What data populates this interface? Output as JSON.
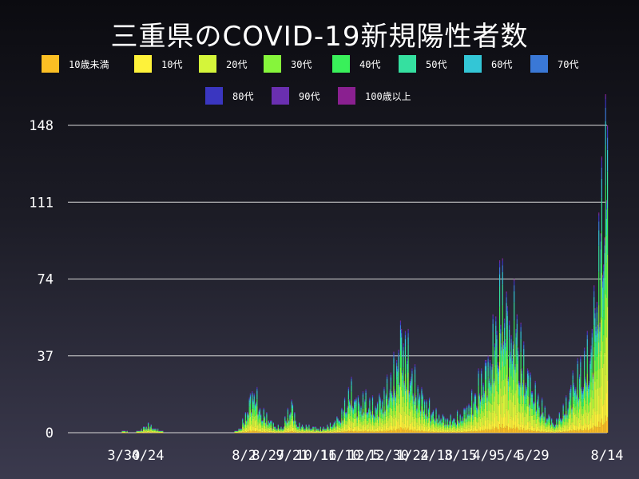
{
  "title": "三重県のCOVID-19新規陽性者数",
  "legend": [
    {
      "label": "10歳未満",
      "color": "#fbbf24"
    },
    {
      "label": "10代",
      "color": "#fef23a"
    },
    {
      "label": "20代",
      "color": "#d4f53a"
    },
    {
      "label": "30代",
      "color": "#86f53b"
    },
    {
      "label": "40代",
      "color": "#39f05a"
    },
    {
      "label": "50代",
      "color": "#35e0a0"
    },
    {
      "label": "60代",
      "color": "#33c6d6"
    },
    {
      "label": "70代",
      "color": "#3a78d6"
    },
    {
      "label": "80代",
      "color": "#3a36c0"
    },
    {
      "label": "90代",
      "color": "#6a2fb0"
    },
    {
      "label": "100歳以上",
      "color": "#8a2090"
    }
  ],
  "chart_data": {
    "type": "bar",
    "stacked": true,
    "title": "三重県のCOVID-19新規陽性者数",
    "xlabel": "",
    "ylabel": "",
    "ylim": [
      0,
      148
    ],
    "y_ticks": [
      0,
      37,
      74,
      111,
      148
    ],
    "grid": true,
    "legend_position": "top",
    "x_range": [
      "2020-02-01",
      "2021-08-14"
    ],
    "x_ticks": [
      {
        "date": "2020-03-30",
        "label": "3/30"
      },
      {
        "date": "2020-04-24",
        "label": "4/24"
      },
      {
        "date": "2020-08-02",
        "label": "8/2"
      },
      {
        "date": "2020-08-27",
        "label": "8/27"
      },
      {
        "date": "2020-09-21",
        "label": "9/21"
      },
      {
        "date": "2020-10-16",
        "label": "10/16"
      },
      {
        "date": "2020-11-10",
        "label": "11/10"
      },
      {
        "date": "2020-12-05",
        "label": "12/5"
      },
      {
        "date": "2020-12-30",
        "label": "12/30"
      },
      {
        "date": "2021-01-24",
        "label": "1/24"
      },
      {
        "date": "2021-02-18",
        "label": "2/18"
      },
      {
        "date": "2021-03-15",
        "label": "3/15"
      },
      {
        "date": "2021-04-09",
        "label": "4/9"
      },
      {
        "date": "2021-05-04",
        "label": "5/4"
      },
      {
        "date": "2021-05-29",
        "label": "5/29"
      },
      {
        "date": "2021-08-14",
        "label": "8/14"
      }
    ],
    "series_names": [
      "10歳未満",
      "10代",
      "20代",
      "30代",
      "40代",
      "50代",
      "60代",
      "70代",
      "80代",
      "90代",
      "100歳以上"
    ],
    "total_keypoints": [
      [
        "2020-02-01",
        0
      ],
      [
        "2020-03-25",
        0
      ],
      [
        "2020-03-30",
        1
      ],
      [
        "2020-04-05",
        0
      ],
      [
        "2020-04-15",
        1
      ],
      [
        "2020-04-24",
        4
      ],
      [
        "2020-05-05",
        1
      ],
      [
        "2020-05-15",
        0
      ],
      [
        "2020-07-20",
        0
      ],
      [
        "2020-07-28",
        2
      ],
      [
        "2020-08-03",
        8
      ],
      [
        "2020-08-08",
        16
      ],
      [
        "2020-08-13",
        20
      ],
      [
        "2020-08-18",
        10
      ],
      [
        "2020-08-25",
        8
      ],
      [
        "2020-08-31",
        4
      ],
      [
        "2020-09-10",
        2
      ],
      [
        "2020-09-20",
        14
      ],
      [
        "2020-09-25",
        4
      ],
      [
        "2020-10-05",
        3
      ],
      [
        "2020-10-20",
        2
      ],
      [
        "2020-11-01",
        4
      ],
      [
        "2020-11-10",
        8
      ],
      [
        "2020-11-20",
        20
      ],
      [
        "2020-11-28",
        14
      ],
      [
        "2020-12-05",
        16
      ],
      [
        "2020-12-15",
        12
      ],
      [
        "2020-12-25",
        18
      ],
      [
        "2021-01-05",
        28
      ],
      [
        "2021-01-12",
        45
      ],
      [
        "2021-01-18",
        38
      ],
      [
        "2021-01-24",
        25
      ],
      [
        "2021-02-01",
        18
      ],
      [
        "2021-02-10",
        12
      ],
      [
        "2021-02-18",
        8
      ],
      [
        "2021-03-01",
        6
      ],
      [
        "2021-03-15",
        8
      ],
      [
        "2021-03-25",
        14
      ],
      [
        "2021-04-05",
        25
      ],
      [
        "2021-04-15",
        35
      ],
      [
        "2021-04-22",
        55
      ],
      [
        "2021-04-28",
        68
      ],
      [
        "2021-05-04",
        45
      ],
      [
        "2021-05-10",
        55
      ],
      [
        "2021-05-15",
        40
      ],
      [
        "2021-05-22",
        28
      ],
      [
        "2021-05-29",
        20
      ],
      [
        "2021-06-10",
        10
      ],
      [
        "2021-06-20",
        4
      ],
      [
        "2021-07-01",
        12
      ],
      [
        "2021-07-10",
        25
      ],
      [
        "2021-07-20",
        30
      ],
      [
        "2021-07-28",
        40
      ],
      [
        "2021-08-03",
        70
      ],
      [
        "2021-08-07",
        95
      ],
      [
        "2021-08-11",
        120
      ],
      [
        "2021-08-14",
        148
      ]
    ],
    "age_mix": [
      0.05,
      0.12,
      0.24,
      0.17,
      0.15,
      0.12,
      0.07,
      0.04,
      0.025,
      0.01,
      0.005
    ]
  }
}
